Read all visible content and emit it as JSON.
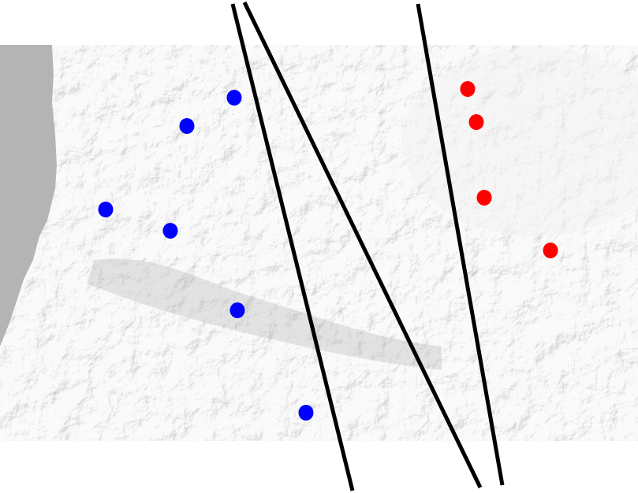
{
  "map": {
    "style": "grayscale shaded relief",
    "colors": {
      "page_background": "#ffffff",
      "land": "#e2e2e2",
      "water": "#b4b4b4",
      "lines": "#000000",
      "blue_points": "#0000ff",
      "red_points": "#ff0000"
    },
    "line_count": 3,
    "blue_point_count": 6,
    "red_point_count": 4
  }
}
